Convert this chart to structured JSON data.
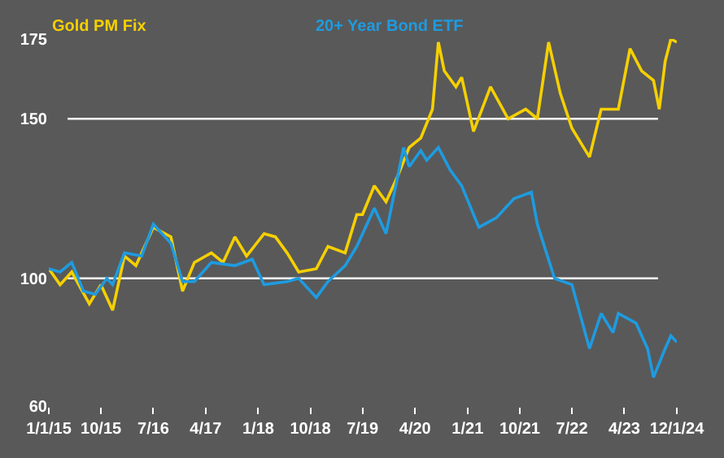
{
  "chart_data": {
    "type": "line",
    "series": [
      {
        "name": "Gold PM Fix",
        "color": "#f5d000",
        "x": [
          "2015-01",
          "2015-03",
          "2015-05",
          "2015-08",
          "2015-10",
          "2015-12",
          "2016-02",
          "2016-04",
          "2016-07",
          "2016-10",
          "2016-12",
          "2017-02",
          "2017-05",
          "2017-07",
          "2017-09",
          "2017-11",
          "2018-02",
          "2018-04",
          "2018-06",
          "2018-08",
          "2018-11",
          "2019-01",
          "2019-04",
          "2019-06",
          "2019-07",
          "2019-09",
          "2019-11",
          "2020-01",
          "2020-03",
          "2020-05",
          "2020-07",
          "2020-08",
          "2020-09",
          "2020-11",
          "2020-12",
          "2021-02",
          "2021-05",
          "2021-08",
          "2021-11",
          "2022-01",
          "2022-03",
          "2022-05",
          "2022-07",
          "2022-10",
          "2022-12",
          "2023-03",
          "2023-05",
          "2023-07",
          "2023-09",
          "2023-10",
          "2023-11",
          "2023-12",
          "2024-01"
        ],
        "values": [
          103,
          98,
          102,
          92,
          98,
          90,
          107,
          104,
          116,
          113,
          96,
          105,
          108,
          105,
          113,
          107,
          114,
          113,
          108,
          102,
          103,
          110,
          108,
          120,
          120,
          129,
          124,
          132,
          141,
          144,
          153,
          174,
          165,
          160,
          163,
          146,
          160,
          150,
          153,
          150,
          174,
          158,
          147,
          138,
          153,
          153,
          172,
          165,
          162,
          153,
          168,
          175,
          174
        ]
      },
      {
        "name": "20+ Year Bond ETF",
        "color": "#1e9be0",
        "x": [
          "2015-01",
          "2015-03",
          "2015-05",
          "2015-07",
          "2015-09",
          "2015-11",
          "2015-12",
          "2016-02",
          "2016-05",
          "2016-07",
          "2016-10",
          "2016-12",
          "2017-02",
          "2017-05",
          "2017-09",
          "2017-12",
          "2018-02",
          "2018-06",
          "2018-08",
          "2018-11",
          "2019-01",
          "2019-04",
          "2019-06",
          "2019-09",
          "2019-11",
          "2020-02",
          "2020-03",
          "2020-05",
          "2020-06",
          "2020-08",
          "2020-10",
          "2020-12",
          "2021-03",
          "2021-06",
          "2021-09",
          "2021-12",
          "2022-01",
          "2022-04",
          "2022-07",
          "2022-10",
          "2022-12",
          "2023-02",
          "2023-03",
          "2023-06",
          "2023-08",
          "2023-09",
          "2023-11",
          "2023-12",
          "2024-01"
        ],
        "values": [
          103,
          102,
          105,
          96,
          95,
          100,
          98,
          108,
          107,
          117,
          111,
          99,
          99,
          105,
          104,
          106,
          98,
          99,
          100,
          94,
          99,
          104,
          110,
          122,
          114,
          141,
          135,
          140,
          137,
          141,
          134,
          129,
          116,
          119,
          125,
          127,
          117,
          100,
          98,
          78,
          89,
          83,
          89,
          86,
          78,
          69,
          78,
          82,
          80
        ]
      }
    ],
    "xlim": [
      "2015-01-01",
      "2024-01-01"
    ],
    "xticks": [
      {
        "value": "2015-01-01",
        "label": "1/1/15"
      },
      {
        "value": "2015-10-01",
        "label": "10/15"
      },
      {
        "value": "2016-07-01",
        "label": "7/16"
      },
      {
        "value": "2017-04-01",
        "label": "4/17"
      },
      {
        "value": "2018-01-01",
        "label": "1/18"
      },
      {
        "value": "2018-10-01",
        "label": "10/18"
      },
      {
        "value": "2019-07-01",
        "label": "7/19"
      },
      {
        "value": "2020-04-01",
        "label": "4/20"
      },
      {
        "value": "2021-01-01",
        "label": "1/21"
      },
      {
        "value": "2021-10-01",
        "label": "10/21"
      },
      {
        "value": "2022-07-01",
        "label": "7/22"
      },
      {
        "value": "2023-04-01",
        "label": "4/23"
      },
      {
        "value": "2024-01-01",
        "label": "12/1/24"
      }
    ],
    "ylim": [
      60,
      175
    ],
    "yticks": [
      60,
      100,
      150,
      175
    ],
    "ref_lines": [
      {
        "axis": "y",
        "value": 100,
        "color": "#ffffff"
      },
      {
        "axis": "y",
        "value": 150,
        "color": "#ffffff"
      }
    ],
    "grid": false,
    "marker": "none",
    "line_style": "solid"
  }
}
